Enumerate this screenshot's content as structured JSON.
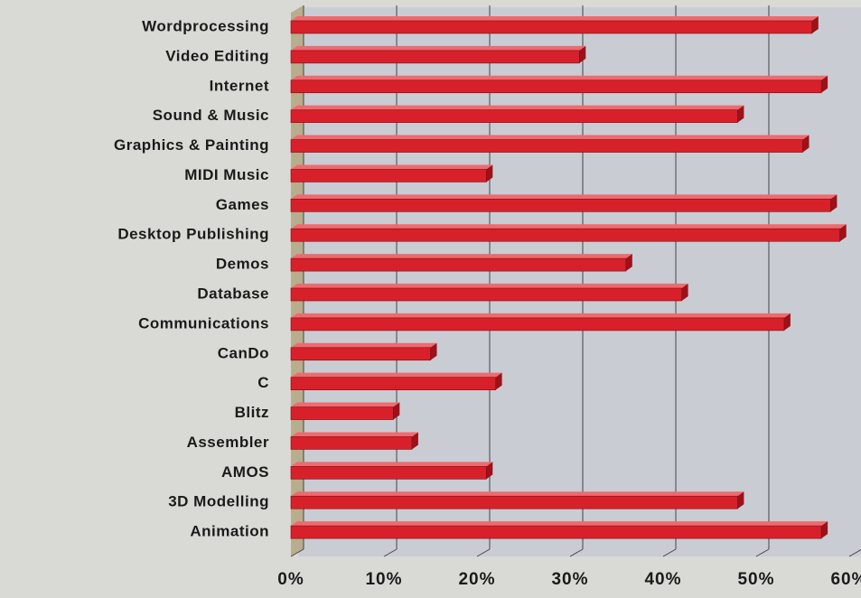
{
  "chart_data": {
    "type": "bar",
    "orientation": "horizontal",
    "categories": [
      "Wordprocessing",
      "Video Editing",
      "Internet",
      "Sound & Music",
      "Graphics & Painting",
      "MIDI Music",
      "Games",
      "Desktop Publishing",
      "Demos",
      "Database",
      "Communications",
      "CanDo",
      "C",
      "Blitz",
      "Assembler",
      "AMOS",
      "3D Modelling",
      "Animation"
    ],
    "values": [
      56,
      31,
      57,
      48,
      55,
      21,
      58,
      59,
      36,
      42,
      53,
      15,
      22,
      11,
      13,
      21,
      48,
      57
    ],
    "color": "#d8202a",
    "xlim": [
      0,
      60
    ],
    "xticks": [
      {
        "value": 0,
        "label": "0%"
      },
      {
        "value": 10,
        "label": "10%"
      },
      {
        "value": 20,
        "label": "20%"
      },
      {
        "value": 30,
        "label": "30%"
      },
      {
        "value": 40,
        "label": "40%"
      },
      {
        "value": 50,
        "label": "50%"
      },
      {
        "value": 60,
        "label": "60%"
      }
    ],
    "grid": true
  }
}
